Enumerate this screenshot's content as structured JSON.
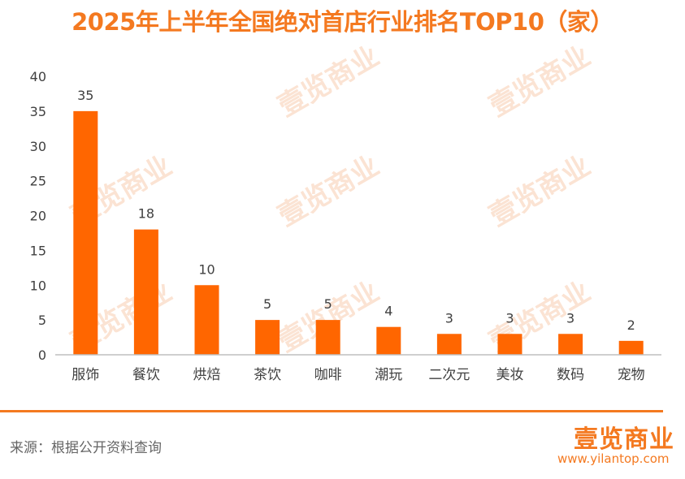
{
  "title": "2025年上半年全国绝对首店行业排名TOP10（家）",
  "source_text": "来源：根据公开资料查询",
  "brand": {
    "logo_text": "壹览商业",
    "url": "www.yilantop.com"
  },
  "watermark_text": "壹览商业",
  "colors": {
    "accent": "#f47920",
    "bar": "#ff6600",
    "axis": "#bfbfbf",
    "text": "#404040",
    "watermark": "#fbe3d3"
  },
  "chart_data": {
    "type": "bar",
    "title": "2025年上半年全国绝对首店行业排名TOP10（家）",
    "categories": [
      "服饰",
      "餐饮",
      "烘焙",
      "茶饮",
      "咖啡",
      "潮玩",
      "二次元",
      "美妆",
      "数码",
      "宠物"
    ],
    "values": [
      35,
      18,
      10,
      5,
      5,
      4,
      3,
      3,
      3,
      2
    ],
    "ylim": [
      0,
      40
    ],
    "yticks": [
      0,
      5,
      10,
      15,
      20,
      25,
      30,
      35,
      40
    ],
    "data_labels": true,
    "grid": false,
    "legend": "none"
  }
}
